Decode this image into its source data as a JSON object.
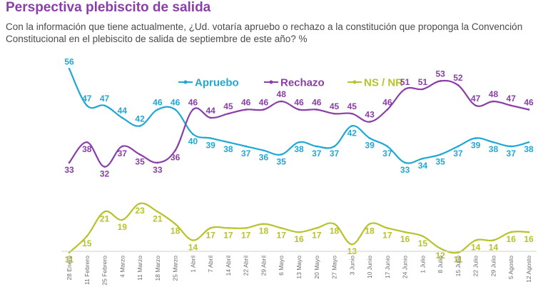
{
  "header": {
    "title": "Perspectiva plebiscito de salida",
    "subtitle": "Con la información que tiene actualmente, ¿Ud. votaría apruebo o rechazo a la constitución que proponga la Convención Constitucional en el plebiscito de salida de septiembre de este año? %"
  },
  "chart_data": {
    "type": "line",
    "categories": [
      "28 Enero",
      "11 Febrero",
      "25 Febrero",
      "4 Marzo",
      "11 Marzo",
      "18 Marzo",
      "25 Marzo",
      "1 Abril",
      "7 Abril",
      "14 Abril",
      "22 Abril",
      "29 Abril",
      "6 Mayo",
      "13 Mayo",
      "20 Mayo",
      "27 Mayo",
      "3 Junio",
      "10 Junio",
      "17 Junio",
      "24 Junio",
      "1 Julio",
      "8 Julio",
      "15 Julio",
      "22 Julio",
      "29 Julio",
      "5 Agosto",
      "12 Agosto"
    ],
    "series": [
      {
        "name": "Apruebo",
        "color": "#1fa8d6",
        "values": [
          56,
          47,
          47,
          44,
          42,
          46,
          46,
          40,
          39,
          38,
          37,
          36,
          35,
          38,
          37,
          37,
          42,
          39,
          37,
          33,
          34,
          35,
          37,
          39,
          38,
          37,
          38
        ]
      },
      {
        "name": "Rechazo",
        "color": "#8a3ea8",
        "values": [
          33,
          38,
          32,
          37,
          35,
          33,
          36,
          46,
          44,
          45,
          46,
          46,
          48,
          46,
          46,
          45,
          45,
          43,
          46,
          51,
          51,
          53,
          52,
          47,
          48,
          47,
          46
        ]
      },
      {
        "name": "NS / NR",
        "color": "#b8c22a",
        "values": [
          11,
          15,
          21,
          19,
          23,
          21,
          18,
          14,
          17,
          17,
          17,
          18,
          17,
          16,
          17,
          18,
          13,
          18,
          17,
          16,
          15,
          12,
          11,
          14,
          14,
          16,
          16
        ]
      }
    ],
    "legend": "top-center",
    "grid": false
  }
}
